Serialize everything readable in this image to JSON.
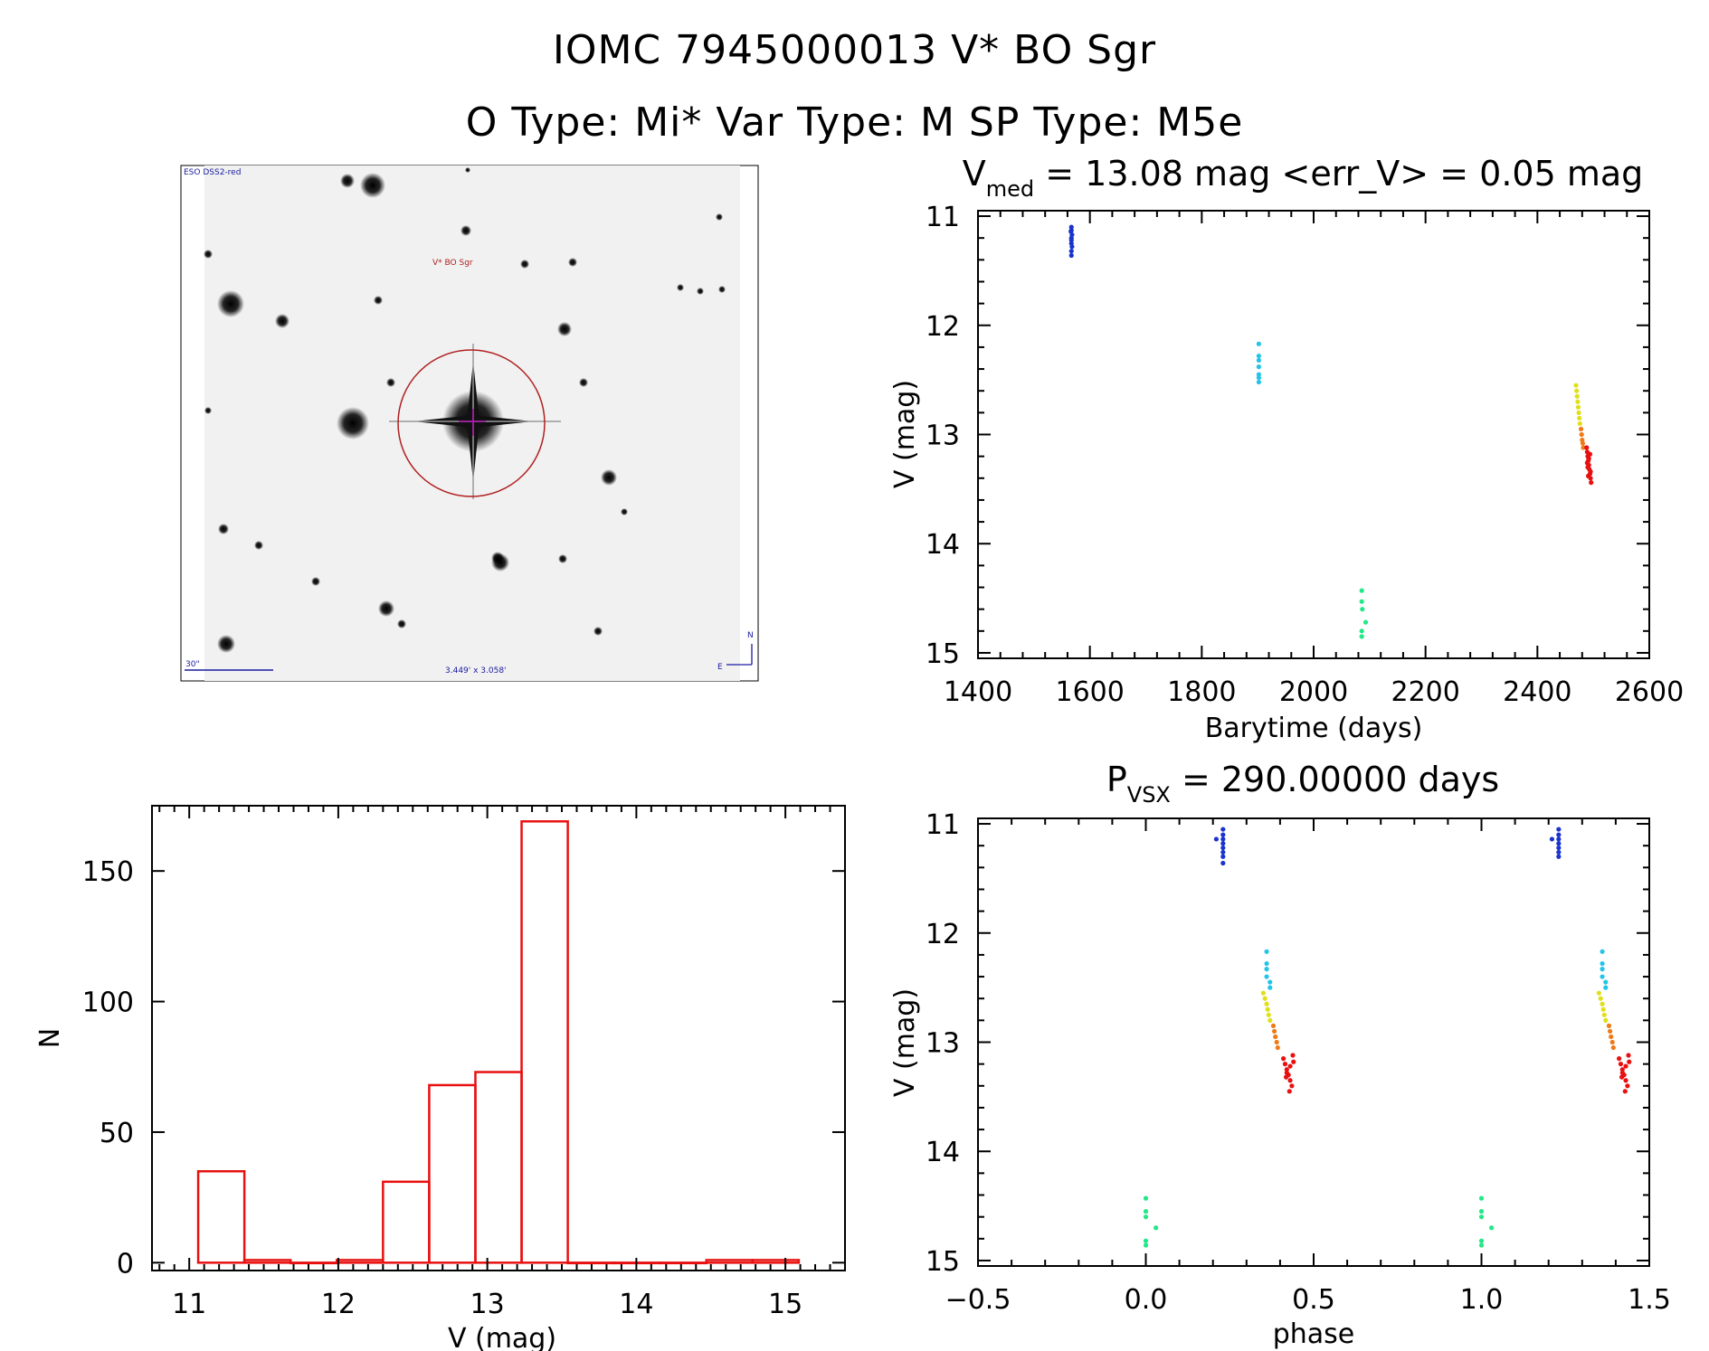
{
  "header": {
    "line1": "IOMC 7945000013   V* BO Sgr",
    "line2": "O Type: Mi*  Var Type: M  SP Type: M5e"
  },
  "finder": {
    "survey_label": "ESO DSS2-red",
    "target_label": "V* BO Sgr",
    "scale_label": "30\"",
    "fov_label": "3.449' x 3.058'",
    "north_label": "N",
    "east_label": "E",
    "colors": {
      "target": "#b02020",
      "annot": "#1a1aa0",
      "cross": "#c000c0"
    }
  },
  "chart_data": [
    {
      "id": "lightcurve",
      "type": "scatter",
      "title_main": "V",
      "title_sub": "med",
      "title_rest": " = 13.08 mag <err_V> = 0.05 mag",
      "xlabel": "Barytime (days)",
      "ylabel": "V (mag)",
      "xlim": [
        1400,
        2600
      ],
      "ylim": [
        15.05,
        10.95
      ],
      "xticks": [
        1400,
        1600,
        1800,
        2000,
        2200,
        2400,
        2600
      ],
      "yticks": [
        11,
        12,
        13,
        14,
        15
      ],
      "grid": false,
      "series": [
        {
          "color": "#1a33cc",
          "points": [
            [
              1567,
              11.1
            ],
            [
              1567,
              11.13
            ],
            [
              1568,
              11.17
            ],
            [
              1567,
              11.2
            ],
            [
              1567,
              11.22
            ],
            [
              1567,
              11.25
            ],
            [
              1568,
              11.28
            ],
            [
              1567,
              11.32
            ],
            [
              1567,
              11.36
            ],
            [
              1566,
              11.14
            ]
          ]
        },
        {
          "color": "#22c4e8",
          "points": [
            [
              1902,
              12.17
            ],
            [
              1902,
              12.28
            ],
            [
              1902,
              12.32
            ],
            [
              1902,
              12.38
            ],
            [
              1902,
              12.45
            ],
            [
              1902,
              12.48
            ],
            [
              1902,
              12.52
            ]
          ]
        },
        {
          "color": "#22e888",
          "points": [
            [
              2086,
              14.43
            ],
            [
              2086,
              14.53
            ],
            [
              2087,
              14.6
            ],
            [
              2093,
              14.72
            ],
            [
              2086,
              14.8
            ],
            [
              2086,
              14.85
            ]
          ]
        },
        {
          "color": "#e0e01a",
          "points": [
            [
              2469,
              12.55
            ],
            [
              2470,
              12.6
            ],
            [
              2471,
              12.65
            ],
            [
              2472,
              12.7
            ],
            [
              2473,
              12.75
            ],
            [
              2474,
              12.8
            ],
            [
              2475,
              12.85
            ],
            [
              2476,
              12.9
            ]
          ]
        },
        {
          "color": "#f07a18",
          "points": [
            [
              2478,
              12.95
            ],
            [
              2479,
              13.0
            ],
            [
              2480,
              13.05
            ],
            [
              2481,
              13.08
            ],
            [
              2482,
              13.12
            ]
          ]
        },
        {
          "color": "#e81010",
          "points": [
            [
              2488,
              13.12
            ],
            [
              2489,
              13.16
            ],
            [
              2490,
              13.2
            ],
            [
              2491,
              13.24
            ],
            [
              2492,
              13.28
            ],
            [
              2493,
              13.32
            ],
            [
              2494,
              13.36
            ],
            [
              2495,
              13.4
            ],
            [
              2496,
              13.44
            ],
            [
              2490,
              13.3
            ],
            [
              2492,
              13.22
            ],
            [
              2494,
              13.18
            ],
            [
              2489,
              13.26
            ],
            [
              2495,
              13.34
            ],
            [
              2491,
              13.38
            ]
          ]
        }
      ]
    },
    {
      "id": "phased",
      "type": "scatter",
      "title_main": "P",
      "title_sub": "VSX",
      "title_rest": " = 290.00000 days",
      "xlabel": "phase",
      "ylabel": "V (mag)",
      "xlim": [
        -0.5,
        1.5
      ],
      "ylim": [
        15.05,
        10.95
      ],
      "xticks": [
        -0.5,
        0.0,
        0.5,
        1.0,
        1.5
      ],
      "xticklabels": [
        "−0.5",
        "0.0",
        "0.5",
        "1.0",
        "1.5"
      ],
      "yticks": [
        11,
        12,
        13,
        14,
        15
      ],
      "grid": false,
      "series": [
        {
          "color": "#1a33cc",
          "points": [
            [
              0.23,
              11.05
            ],
            [
              0.23,
              11.1
            ],
            [
              0.23,
              11.14
            ],
            [
              0.23,
              11.18
            ],
            [
              0.23,
              11.22
            ],
            [
              0.23,
              11.26
            ],
            [
              0.23,
              11.3
            ],
            [
              0.23,
              11.36
            ],
            [
              0.21,
              11.14
            ],
            [
              1.23,
              11.05
            ],
            [
              1.23,
              11.1
            ],
            [
              1.23,
              11.14
            ],
            [
              1.23,
              11.18
            ],
            [
              1.23,
              11.22
            ],
            [
              1.23,
              11.26
            ],
            [
              1.23,
              11.3
            ],
            [
              1.21,
              11.14
            ]
          ]
        },
        {
          "color": "#22c4e8",
          "points": [
            [
              0.36,
              12.17
            ],
            [
              0.36,
              12.28
            ],
            [
              0.36,
              12.33
            ],
            [
              0.36,
              12.4
            ],
            [
              0.37,
              12.45
            ],
            [
              0.37,
              12.5
            ],
            [
              1.36,
              12.17
            ],
            [
              1.36,
              12.28
            ],
            [
              1.36,
              12.33
            ],
            [
              1.36,
              12.4
            ],
            [
              1.37,
              12.45
            ],
            [
              1.37,
              12.5
            ]
          ]
        },
        {
          "color": "#22e888",
          "points": [
            [
              0.0,
              14.43
            ],
            [
              0.0,
              14.55
            ],
            [
              0.0,
              14.6
            ],
            [
              0.03,
              14.7
            ],
            [
              0.0,
              14.82
            ],
            [
              0.0,
              14.86
            ],
            [
              1.0,
              14.43
            ],
            [
              1.0,
              14.55
            ],
            [
              1.0,
              14.6
            ],
            [
              1.03,
              14.7
            ],
            [
              1.0,
              14.82
            ],
            [
              1.0,
              14.86
            ]
          ]
        },
        {
          "color": "#e0e01a",
          "points": [
            [
              0.35,
              12.55
            ],
            [
              0.355,
              12.6
            ],
            [
              0.36,
              12.65
            ],
            [
              0.363,
              12.7
            ],
            [
              0.366,
              12.75
            ],
            [
              0.37,
              12.8
            ],
            [
              1.35,
              12.55
            ],
            [
              1.355,
              12.6
            ],
            [
              1.36,
              12.65
            ],
            [
              1.363,
              12.7
            ],
            [
              1.366,
              12.75
            ],
            [
              1.37,
              12.8
            ]
          ]
        },
        {
          "color": "#f07a18",
          "points": [
            [
              0.38,
              12.85
            ],
            [
              0.383,
              12.9
            ],
            [
              0.386,
              12.95
            ],
            [
              0.39,
              13.0
            ],
            [
              0.393,
              13.05
            ],
            [
              1.38,
              12.85
            ],
            [
              1.383,
              12.9
            ],
            [
              1.386,
              12.95
            ],
            [
              1.39,
              13.0
            ],
            [
              1.393,
              13.05
            ]
          ]
        },
        {
          "color": "#e81010",
          "points": [
            [
              0.41,
              13.15
            ],
            [
              0.415,
              13.2
            ],
            [
              0.42,
              13.25
            ],
            [
              0.425,
              13.3
            ],
            [
              0.43,
              13.35
            ],
            [
              0.435,
              13.4
            ],
            [
              0.42,
              13.28
            ],
            [
              0.43,
              13.22
            ],
            [
              0.44,
              13.18
            ],
            [
              0.418,
              13.32
            ],
            [
              0.428,
              13.45
            ],
            [
              0.438,
              13.12
            ],
            [
              1.41,
              13.15
            ],
            [
              1.415,
              13.2
            ],
            [
              1.42,
              13.25
            ],
            [
              1.425,
              13.3
            ],
            [
              1.43,
              13.35
            ],
            [
              1.435,
              13.4
            ],
            [
              1.42,
              13.28
            ],
            [
              1.43,
              13.22
            ],
            [
              1.44,
              13.18
            ],
            [
              1.418,
              13.32
            ],
            [
              1.428,
              13.45
            ],
            [
              1.438,
              13.12
            ]
          ]
        }
      ]
    },
    {
      "id": "histogram",
      "type": "bar",
      "xlabel": "V (mag)",
      "ylabel": "N",
      "xlim": [
        10.75,
        15.4
      ],
      "ylim": [
        -3,
        175
      ],
      "xticks": [
        11,
        12,
        13,
        14,
        15
      ],
      "yticks": [
        0,
        50,
        100,
        150
      ],
      "bar_color": "#e81010",
      "bins": [
        {
          "x0": 11.06,
          "x1": 11.37,
          "n": 35
        },
        {
          "x0": 11.37,
          "x1": 11.68,
          "n": 1
        },
        {
          "x0": 11.68,
          "x1": 11.99,
          "n": 0
        },
        {
          "x0": 11.99,
          "x1": 12.3,
          "n": 1
        },
        {
          "x0": 12.3,
          "x1": 12.61,
          "n": 31
        },
        {
          "x0": 12.61,
          "x1": 12.92,
          "n": 68
        },
        {
          "x0": 12.92,
          "x1": 13.23,
          "n": 73
        },
        {
          "x0": 13.23,
          "x1": 13.54,
          "n": 169
        },
        {
          "x0": 13.54,
          "x1": 13.85,
          "n": 0
        },
        {
          "x0": 13.85,
          "x1": 14.16,
          "n": 0
        },
        {
          "x0": 14.16,
          "x1": 14.47,
          "n": 0
        },
        {
          "x0": 14.47,
          "x1": 14.78,
          "n": 1
        },
        {
          "x0": 14.78,
          "x1": 15.09,
          "n": 1
        }
      ]
    }
  ]
}
